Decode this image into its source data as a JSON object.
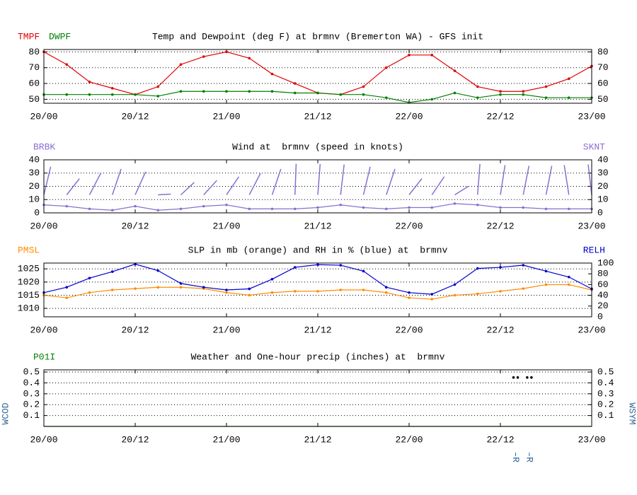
{
  "chart_data": [
    {
      "type": "line",
      "title": "Temp and Dewpoint (deg F) at brmnv (Bremerton WA) - GFS init",
      "x": [
        0,
        3,
        6,
        9,
        12,
        15,
        18,
        21,
        24,
        27,
        30,
        33,
        36,
        39,
        42,
        45,
        48,
        51,
        54,
        57,
        60,
        63,
        66,
        69,
        72
      ],
      "xlim": [
        0,
        72
      ],
      "xticks": [
        {
          "value": 0,
          "label": "20/00"
        },
        {
          "value": 12,
          "label": "20/12"
        },
        {
          "value": 24,
          "label": "21/00"
        },
        {
          "value": 36,
          "label": "21/12"
        },
        {
          "value": 48,
          "label": "22/00"
        },
        {
          "value": 60,
          "label": "22/12"
        },
        {
          "value": 72,
          "label": "23/00"
        }
      ],
      "series": [
        {
          "name": "TMPF",
          "color": "#e00000",
          "values": [
            80,
            72,
            61,
            57,
            53,
            58,
            72,
            77,
            80,
            76,
            66,
            60,
            54,
            53,
            58,
            70,
            78,
            78,
            68,
            58,
            55,
            55,
            58,
            63,
            71
          ]
        },
        {
          "name": "DWPF",
          "color": "#008000",
          "values": [
            53,
            53,
            53,
            53,
            53,
            52,
            55,
            55,
            55,
            55,
            55,
            54,
            54,
            53,
            53,
            51,
            48,
            50,
            54,
            51,
            53,
            53,
            51,
            51,
            51
          ]
        }
      ],
      "ylim": [
        47.5,
        81.5
      ],
      "yticks": [
        50,
        60,
        70,
        80
      ],
      "y2lim": [
        47.5,
        81.5
      ],
      "y2ticks": [
        50,
        60,
        70,
        80
      ],
      "grid": true
    },
    {
      "type": "line",
      "title": "Wind at  brmnv (speed in knots)",
      "x": [
        0,
        3,
        6,
        9,
        12,
        15,
        18,
        21,
        24,
        27,
        30,
        33,
        36,
        39,
        42,
        45,
        48,
        51,
        54,
        57,
        60,
        63,
        66,
        69,
        72
      ],
      "xlim": [
        0,
        72
      ],
      "xticks": [
        {
          "value": 0,
          "label": "20/00"
        },
        {
          "value": 12,
          "label": "20/12"
        },
        {
          "value": 24,
          "label": "21/00"
        },
        {
          "value": 36,
          "label": "21/12"
        },
        {
          "value": 48,
          "label": "22/00"
        },
        {
          "value": 60,
          "label": "22/12"
        },
        {
          "value": 72,
          "label": "23/00"
        }
      ],
      "barbs": {
        "name": "BRBK",
        "color": "#8a6fd0",
        "directions": [
          30,
          70,
          55,
          40,
          50,
          110,
          80,
          75,
          65,
          55,
          40,
          5,
          10,
          15,
          30,
          40,
          70,
          65,
          90,
          10,
          20,
          25,
          25,
          340,
          345
        ]
      },
      "series": [
        {
          "name": "SKNT",
          "color": "#8a6fd0",
          "axis": "y2",
          "values": [
            6,
            5,
            3,
            2,
            5,
            2,
            3,
            5,
            6,
            3,
            3,
            3,
            4,
            6,
            4,
            3,
            4,
            4,
            7,
            6,
            4,
            4,
            3,
            3,
            3
          ]
        }
      ],
      "ylim": [
        0,
        40
      ],
      "yticks": [
        0,
        10,
        20,
        30,
        40
      ],
      "y2lim": [
        0,
        40
      ],
      "y2ticks": [
        0,
        10,
        20,
        30,
        40
      ],
      "grid": true
    },
    {
      "type": "line",
      "title": "SLP in mb (orange) and RH in % (blue) at  brmnv",
      "x": [
        0,
        3,
        6,
        9,
        12,
        15,
        18,
        21,
        24,
        27,
        30,
        33,
        36,
        39,
        42,
        45,
        48,
        51,
        54,
        57,
        60,
        63,
        66,
        69,
        72
      ],
      "xlim": [
        0,
        72
      ],
      "xticks": [
        {
          "value": 0,
          "label": "20/00"
        },
        {
          "value": 12,
          "label": "20/12"
        },
        {
          "value": 24,
          "label": "21/00"
        },
        {
          "value": 36,
          "label": "21/12"
        },
        {
          "value": 48,
          "label": "22/00"
        },
        {
          "value": 60,
          "label": "22/12"
        },
        {
          "value": 72,
          "label": "23/00"
        }
      ],
      "series": [
        {
          "name": "PMSL",
          "color": "#ff8c00",
          "values": [
            1015,
            1014,
            1016,
            1017,
            1017.5,
            1018,
            1018,
            1017.5,
            1016,
            1015,
            1016,
            1016.5,
            1016.5,
            1017,
            1017,
            1016,
            1014,
            1013.5,
            1015,
            1015.5,
            1016.5,
            1017.5,
            1019,
            1019,
            1017
          ]
        },
        {
          "name": "RELH",
          "color": "#0000cd",
          "axis": "y2",
          "values": [
            45,
            55,
            72,
            84,
            98,
            86,
            62,
            55,
            50,
            52,
            70,
            92,
            97,
            96,
            85,
            55,
            45,
            42,
            60,
            90,
            92,
            96,
            85,
            74,
            52
          ]
        }
      ],
      "ylim": [
        1006.8,
        1027.2
      ],
      "yticks": [
        1010,
        1015,
        1020,
        1025
      ],
      "y2lim": [
        0,
        100
      ],
      "y2ticks": [
        0,
        20,
        40,
        60,
        80,
        100
      ],
      "grid": true
    },
    {
      "type": "line",
      "title": "Weather and One-hour precip (inches) at  brmnv",
      "y_label": "WCOD",
      "y2_label": "WSYM",
      "x": [
        0,
        3,
        6,
        9,
        12,
        15,
        18,
        21,
        24,
        27,
        30,
        33,
        36,
        39,
        42,
        45,
        48,
        51,
        54,
        57,
        60,
        63,
        66,
        69,
        72
      ],
      "xlim": [
        0,
        72
      ],
      "xticks": [
        {
          "value": 0,
          "label": "20/00"
        },
        {
          "value": 12,
          "label": "20/12"
        },
        {
          "value": 24,
          "label": "21/00"
        },
        {
          "value": 36,
          "label": "21/12"
        },
        {
          "value": 48,
          "label": "22/00"
        },
        {
          "value": 60,
          "label": "22/12"
        },
        {
          "value": 72,
          "label": "23/00"
        }
      ],
      "series": [
        {
          "name": "P01I",
          "color": "#008000",
          "values": [
            0,
            0,
            0,
            0,
            0,
            0,
            0,
            0,
            0,
            0,
            0,
            0,
            0,
            0,
            0,
            0,
            0,
            0,
            0,
            0,
            0,
            0,
            0,
            0,
            0
          ]
        }
      ],
      "weather": {
        "x": [
          62,
          63.8
        ],
        "values": [
          0.45,
          0.45
        ],
        "symbols": [
          "R",
          "R"
        ]
      },
      "ylim": [
        0,
        0.52
      ],
      "yticks": [
        0.1,
        0.2,
        0.3,
        0.4,
        0.5
      ],
      "y2lim": [
        0,
        0.52
      ],
      "y2ticks": [
        0.1,
        0.2,
        0.3,
        0.4,
        0.5
      ],
      "grid": true
    }
  ]
}
